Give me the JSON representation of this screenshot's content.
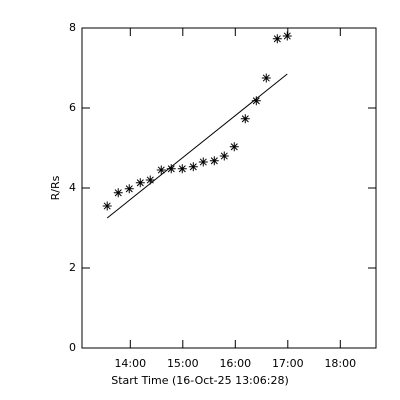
{
  "chart_data": {
    "type": "scatter",
    "x_label": "Start Time (16-Oct-25 13:06:28)",
    "y_label": "R/Rs",
    "x": [
      13.56,
      13.77,
      13.98,
      14.19,
      14.38,
      14.59,
      14.78,
      14.99,
      15.2,
      15.39,
      15.6,
      15.79,
      15.98,
      16.19,
      16.4,
      16.59,
      16.8,
      16.99
    ],
    "values": [
      3.55,
      3.88,
      3.98,
      4.13,
      4.2,
      4.45,
      4.48,
      4.48,
      4.53,
      4.65,
      4.68,
      4.8,
      5.03,
      5.73,
      6.18,
      6.75,
      7.73,
      7.8
    ],
    "marker": "asterisk",
    "color": "#000000",
    "fit": {
      "x": [
        13.56,
        16.99
      ],
      "values": [
        3.25,
        6.85
      ]
    },
    "xlim": [
      13.08,
      18.68
    ],
    "ylim": [
      0,
      8
    ],
    "xticks": [
      {
        "value": 14,
        "label": "14:00"
      },
      {
        "value": 15,
        "label": "15:00"
      },
      {
        "value": 16,
        "label": "16:00"
      },
      {
        "value": 17,
        "label": "17:00"
      },
      {
        "value": 18,
        "label": "18:00"
      }
    ],
    "yticks": [
      0,
      2,
      4,
      6,
      8
    ],
    "grid": false
  }
}
